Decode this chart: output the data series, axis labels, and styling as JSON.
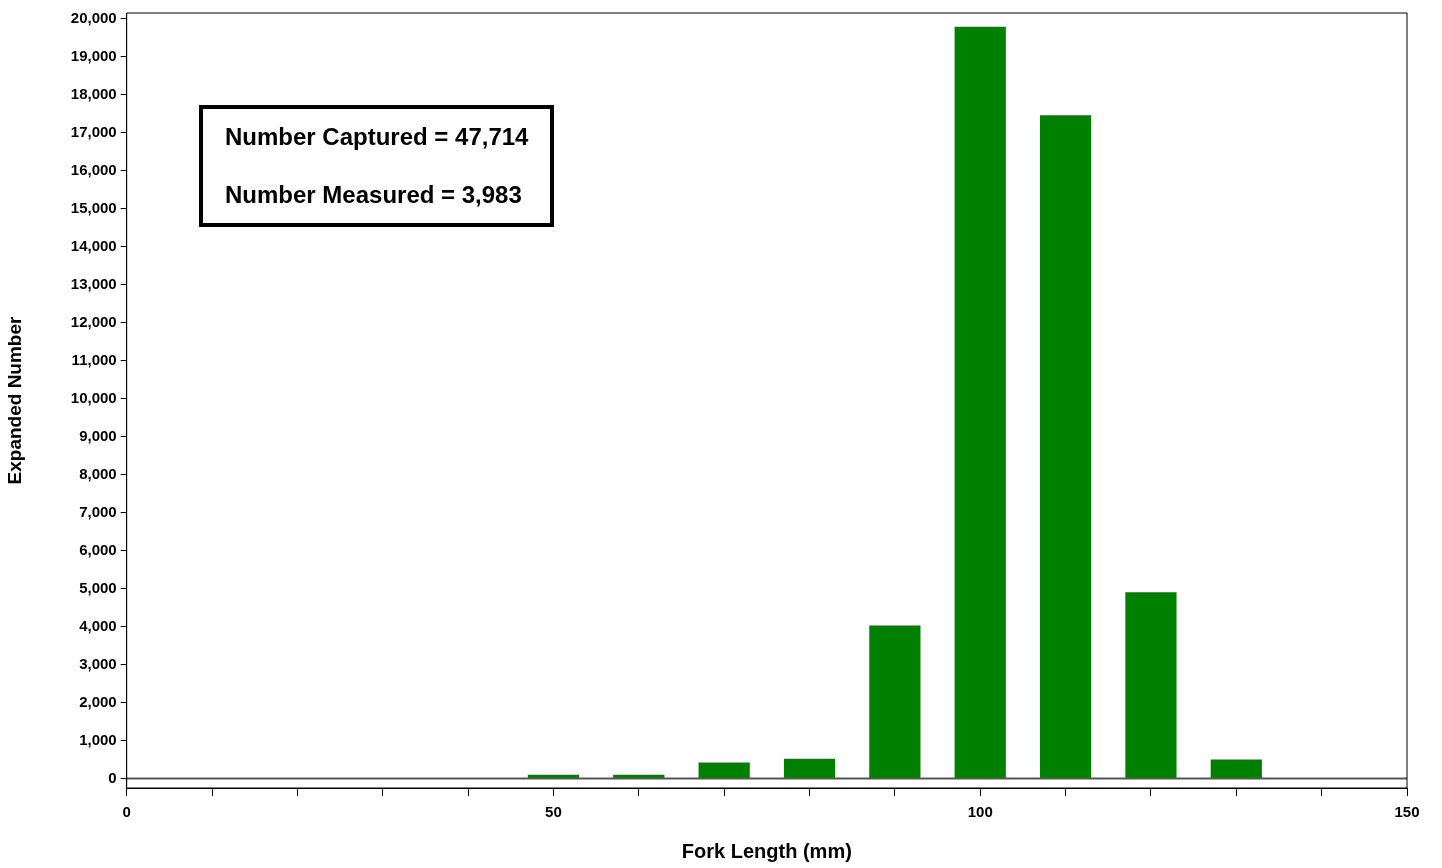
{
  "chart_data": {
    "type": "bar",
    "xlabel": "Fork Length (mm)",
    "ylabel": "Expanded Number",
    "x": [
      50,
      60,
      70,
      80,
      90,
      100,
      110,
      120,
      130
    ],
    "values": [
      100,
      100,
      420,
      520,
      4030,
      19790,
      17460,
      4900,
      500
    ],
    "color": "#008000",
    "xlim": [
      0,
      150
    ],
    "xticks": [
      0,
      {
        "value": 10,
        "label": null
      },
      {
        "value": 20,
        "label": null
      },
      {
        "value": 30,
        "label": null
      },
      {
        "value": 40,
        "label": null
      },
      50,
      {
        "value": 60,
        "label": null
      },
      {
        "value": 70,
        "label": null
      },
      {
        "value": 80,
        "label": null
      },
      {
        "value": 90,
        "label": null
      },
      100,
      {
        "value": 110,
        "label": null
      },
      {
        "value": 120,
        "label": null
      },
      {
        "value": 130,
        "label": null
      },
      {
        "value": 140,
        "label": null
      },
      150
    ],
    "ylim": [
      -250,
      20150
    ],
    "yticks": [
      {
        "value": 0,
        "label": "0"
      },
      {
        "value": 1000,
        "label": "1,000"
      },
      {
        "value": 2000,
        "label": "2,000"
      },
      {
        "value": 3000,
        "label": "3,000"
      },
      {
        "value": 4000,
        "label": "4,000"
      },
      {
        "value": 5000,
        "label": "5,000"
      },
      {
        "value": 6000,
        "label": "6,000"
      },
      {
        "value": 7000,
        "label": "7,000"
      },
      {
        "value": 8000,
        "label": "8,000"
      },
      {
        "value": 9000,
        "label": "9,000"
      },
      {
        "value": 10000,
        "label": "10,000"
      },
      {
        "value": 11000,
        "label": "11,000"
      },
      {
        "value": 12000,
        "label": "12,000"
      },
      {
        "value": 13000,
        "label": "13,000"
      },
      {
        "value": 14000,
        "label": "14,000"
      },
      {
        "value": 15000,
        "label": "15,000"
      },
      {
        "value": 16000,
        "label": "16,000"
      },
      {
        "value": 17000,
        "label": "17,000"
      },
      {
        "value": 18000,
        "label": "18,000"
      },
      {
        "value": 19000,
        "label": "19,000"
      },
      {
        "value": 20000,
        "label": "20,000"
      }
    ],
    "ref_lines": [
      {
        "axis": "y",
        "value": 0,
        "color": "#555555"
      }
    ],
    "annotations": [
      "Number Captured = 47,714",
      "Number Measured = 3,983"
    ],
    "grid": false,
    "legend": false
  }
}
